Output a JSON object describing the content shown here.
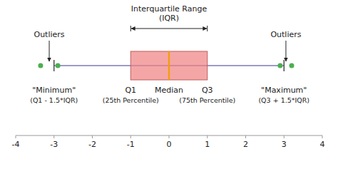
{
  "chart_data": {
    "type": "box",
    "q1": -1,
    "q3": 1,
    "median": 0,
    "whisker_low": -3,
    "whisker_high": 3,
    "outliers": [
      -3.35,
      -2.9,
      2.9,
      3.2
    ],
    "color": "#f08080",
    "xlim": [
      -4,
      4
    ],
    "xticks": [
      -4,
      -3,
      -2,
      -1,
      0,
      1,
      2,
      3,
      4
    ],
    "grid": false,
    "annotations": {
      "iqr": [
        "Interquartile Range",
        "(IQR)"
      ],
      "outliers": "Outliers",
      "whisker_low": [
        "\"Minimum\"",
        "(Q1 - 1.5*IQR)"
      ],
      "q1": [
        "Q1",
        "(25th Percentile)"
      ],
      "median": [
        "Median"
      ],
      "q3": [
        "Q3",
        "(75th Percentile)"
      ],
      "whisker_high": [
        "\"Maximum\"",
        "(Q3 + 1.5*IQR)"
      ]
    }
  }
}
